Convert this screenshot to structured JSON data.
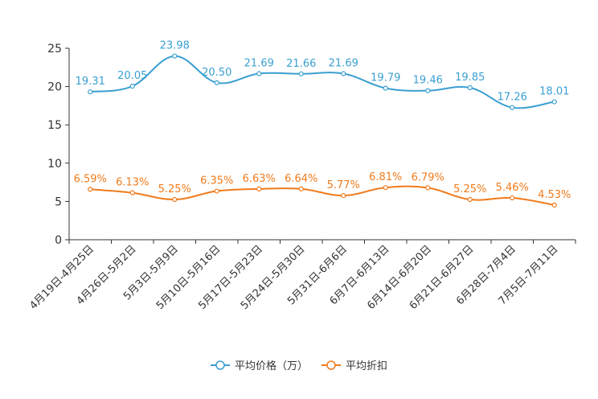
{
  "chart_data": {
    "type": "line",
    "categories": [
      "4月19日-4月25日",
      "4月26日-5月2日",
      "5月3日-5月9日",
      "5月10日-5月16日",
      "5月17日-5月23日",
      "5月24日-5月30日",
      "5月31日-6月6日",
      "6月7日-6月13日",
      "6月14日-6月20日",
      "6月21日-6月27日",
      "6月28日-7月4日",
      "7月5日-7月11日"
    ],
    "series": [
      {
        "name": "平均价格（万）",
        "color": "#3a9fd1",
        "values": [
          19.31,
          20.05,
          23.98,
          20.5,
          21.69,
          21.66,
          21.69,
          19.79,
          19.46,
          19.85,
          17.26,
          18.01
        ],
        "labels": [
          "19.31",
          "20.05",
          "23.98",
          "20.50",
          "21.69",
          "21.66",
          "21.69",
          "19.79",
          "19.46",
          "19.85",
          "17.26",
          "18.01"
        ]
      },
      {
        "name": "平均折扣",
        "color": "#f07b1c",
        "values": [
          6.59,
          6.13,
          5.25,
          6.35,
          6.63,
          6.64,
          5.77,
          6.81,
          6.79,
          5.25,
          5.46,
          4.53
        ],
        "labels": [
          "6.59%",
          "6.13%",
          "5.25%",
          "6.35%",
          "6.63%",
          "6.64%",
          "5.77%",
          "6.81%",
          "6.79%",
          "5.25%",
          "5.46%",
          "4.53%"
        ]
      }
    ],
    "ylim": [
      0,
      25
    ],
    "yticks": [
      "0",
      "5",
      "10",
      "15",
      "20",
      "25"
    ],
    "grid": false,
    "legend": "bottom-center"
  }
}
